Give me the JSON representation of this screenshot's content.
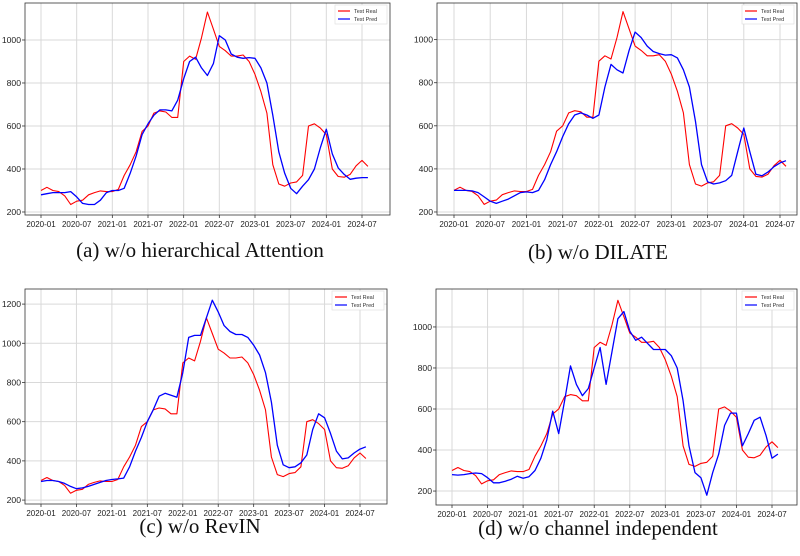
{
  "chart_data": [
    {
      "type": "line",
      "caption": "(a) w/o hierarchical Attention",
      "xticks": [
        "2020-01",
        "2020-07",
        "2021-01",
        "2021-07",
        "2022-01",
        "2022-07",
        "2023-01",
        "2023-07",
        "2024-01",
        "2024-07"
      ],
      "yticks": [
        200,
        400,
        600,
        800,
        1000
      ],
      "ylim": [
        186,
        1172
      ],
      "grid": true,
      "legend": "top-right",
      "x": [
        "2020-01",
        "2020-02",
        "2020-03",
        "2020-04",
        "2020-05",
        "2020-06",
        "2020-07",
        "2020-08",
        "2020-09",
        "2020-10",
        "2020-11",
        "2020-12",
        "2021-01",
        "2021-02",
        "2021-03",
        "2021-04",
        "2021-05",
        "2021-06",
        "2021-07",
        "2021-08",
        "2021-09",
        "2021-10",
        "2021-11",
        "2021-12",
        "2022-01",
        "2022-02",
        "2022-03",
        "2022-04",
        "2022-05",
        "2022-06",
        "2022-07",
        "2022-08",
        "2022-09",
        "2022-10",
        "2022-11",
        "2022-12",
        "2023-01",
        "2023-02",
        "2023-03",
        "2023-04",
        "2023-05",
        "2023-06",
        "2023-07",
        "2023-08",
        "2023-09",
        "2023-10",
        "2023-11",
        "2023-12",
        "2024-01",
        "2024-02",
        "2024-03",
        "2024-04",
        "2024-05",
        "2024-06",
        "2024-07",
        "2024-08"
      ],
      "series": [
        {
          "name": "Test Real",
          "color": "#ff0000",
          "values": [
            300,
            315,
            300,
            295,
            275,
            235,
            250,
            255,
            280,
            290,
            298,
            295,
            295,
            305,
            370,
            420,
            480,
            575,
            600,
            660,
            670,
            665,
            640,
            640,
            900,
            925,
            910,
            1010,
            1130,
            1050,
            970,
            950,
            925,
            925,
            930,
            900,
            840,
            760,
            660,
            420,
            330,
            320,
            335,
            340,
            370,
            600,
            610,
            590,
            560,
            400,
            365,
            362,
            375,
            415,
            440,
            412
          ]
        },
        {
          "name": "Test Pred",
          "color": "#0000ff",
          "values": [
            280,
            285,
            290,
            290,
            290,
            295,
            270,
            240,
            235,
            235,
            255,
            290,
            300,
            300,
            310,
            380,
            460,
            560,
            610,
            650,
            675,
            675,
            670,
            720,
            820,
            900,
            920,
            870,
            835,
            890,
            1020,
            1000,
            935,
            920,
            915,
            918,
            915,
            870,
            800,
            650,
            480,
            380,
            310,
            285,
            320,
            350,
            400,
            500,
            585,
            470,
            405,
            375,
            352,
            357,
            360,
            360
          ]
        }
      ]
    },
    {
      "type": "line",
      "caption": "(b) w/o DILATE",
      "xticks": [
        "2020-01",
        "2020-07",
        "2021-01",
        "2021-07",
        "2022-01",
        "2022-07",
        "2023-01",
        "2023-07",
        "2024-01",
        "2024-07"
      ],
      "yticks": [
        200,
        400,
        600,
        800,
        1000
      ],
      "ylim": [
        186,
        1170
      ],
      "grid": true,
      "legend": "top-right",
      "x": [
        "2020-01",
        "2020-02",
        "2020-03",
        "2020-04",
        "2020-05",
        "2020-06",
        "2020-07",
        "2020-08",
        "2020-09",
        "2020-10",
        "2020-11",
        "2020-12",
        "2021-01",
        "2021-02",
        "2021-03",
        "2021-04",
        "2021-05",
        "2021-06",
        "2021-07",
        "2021-08",
        "2021-09",
        "2021-10",
        "2021-11",
        "2021-12",
        "2022-01",
        "2022-02",
        "2022-03",
        "2022-04",
        "2022-05",
        "2022-06",
        "2022-07",
        "2022-08",
        "2022-09",
        "2022-10",
        "2022-11",
        "2022-12",
        "2023-01",
        "2023-02",
        "2023-03",
        "2023-04",
        "2023-05",
        "2023-06",
        "2023-07",
        "2023-08",
        "2023-09",
        "2023-10",
        "2023-11",
        "2023-12",
        "2024-01",
        "2024-02",
        "2024-03",
        "2024-04",
        "2024-05",
        "2024-06",
        "2024-07",
        "2024-08"
      ],
      "series": [
        {
          "name": "Test Real",
          "color": "#ff0000",
          "values": [
            300,
            315,
            300,
            295,
            275,
            235,
            250,
            255,
            280,
            290,
            298,
            295,
            295,
            305,
            370,
            420,
            480,
            575,
            600,
            660,
            670,
            665,
            640,
            640,
            900,
            925,
            910,
            1010,
            1130,
            1050,
            970,
            950,
            925,
            925,
            930,
            900,
            840,
            760,
            660,
            420,
            330,
            320,
            335,
            340,
            370,
            600,
            610,
            590,
            560,
            400,
            365,
            362,
            375,
            415,
            440,
            412
          ]
        },
        {
          "name": "Test Pred",
          "color": "#0000ff",
          "values": [
            300,
            300,
            300,
            298,
            290,
            270,
            250,
            240,
            250,
            260,
            275,
            290,
            293,
            290,
            300,
            350,
            420,
            480,
            550,
            610,
            650,
            660,
            650,
            635,
            650,
            780,
            885,
            860,
            845,
            950,
            1035,
            1010,
            970,
            945,
            935,
            928,
            930,
            915,
            860,
            780,
            620,
            420,
            340,
            330,
            335,
            345,
            370,
            480,
            590,
            480,
            375,
            368,
            385,
            410,
            428,
            438
          ]
        }
      ]
    },
    {
      "type": "line",
      "caption": "(c) w/o RevIN",
      "xticks": [
        "2020-01",
        "2020-07",
        "2021-01",
        "2021-07",
        "2022-01",
        "2022-07",
        "2023-01",
        "2023-07",
        "2024-01",
        "2024-07"
      ],
      "yticks": [
        200,
        400,
        600,
        800,
        1000,
        1200
      ],
      "ylim": [
        180,
        1277
      ],
      "grid": true,
      "legend": "top-right",
      "x": [
        "2020-01",
        "2020-02",
        "2020-03",
        "2020-04",
        "2020-05",
        "2020-06",
        "2020-07",
        "2020-08",
        "2020-09",
        "2020-10",
        "2020-11",
        "2020-12",
        "2021-01",
        "2021-02",
        "2021-03",
        "2021-04",
        "2021-05",
        "2021-06",
        "2021-07",
        "2021-08",
        "2021-09",
        "2021-10",
        "2021-11",
        "2021-12",
        "2022-01",
        "2022-02",
        "2022-03",
        "2022-04",
        "2022-05",
        "2022-06",
        "2022-07",
        "2022-08",
        "2022-09",
        "2022-10",
        "2022-11",
        "2022-12",
        "2023-01",
        "2023-02",
        "2023-03",
        "2023-04",
        "2023-05",
        "2023-06",
        "2023-07",
        "2023-08",
        "2023-09",
        "2023-10",
        "2023-11",
        "2023-12",
        "2024-01",
        "2024-02",
        "2024-03",
        "2024-04",
        "2024-05",
        "2024-06",
        "2024-07",
        "2024-08"
      ],
      "series": [
        {
          "name": "Test Real",
          "color": "#ff0000",
          "values": [
            300,
            315,
            300,
            295,
            275,
            235,
            250,
            255,
            280,
            290,
            298,
            295,
            295,
            305,
            370,
            420,
            480,
            575,
            600,
            660,
            670,
            665,
            640,
            640,
            900,
            925,
            910,
            1010,
            1130,
            1050,
            970,
            950,
            925,
            925,
            930,
            900,
            840,
            760,
            660,
            420,
            330,
            320,
            335,
            340,
            370,
            600,
            610,
            590,
            560,
            400,
            365,
            362,
            375,
            415,
            440,
            412
          ]
        },
        {
          "name": "Test Pred",
          "color": "#0000ff",
          "values": [
            295,
            300,
            300,
            295,
            285,
            270,
            258,
            262,
            270,
            280,
            290,
            300,
            305,
            308,
            312,
            370,
            450,
            520,
            600,
            660,
            730,
            745,
            735,
            725,
            850,
            1030,
            1040,
            1040,
            1130,
            1220,
            1160,
            1090,
            1060,
            1045,
            1045,
            1030,
            990,
            940,
            850,
            700,
            480,
            380,
            365,
            370,
            390,
            430,
            560,
            640,
            620,
            540,
            450,
            410,
            415,
            440,
            460,
            472
          ]
        }
      ]
    },
    {
      "type": "line",
      "caption": "(d) w/o channel independent",
      "xticks": [
        "2020-01",
        "2020-07",
        "2021-01",
        "2021-07",
        "2022-01",
        "2022-07",
        "2023-01",
        "2023-07",
        "2024-01",
        "2024-07"
      ],
      "yticks": [
        200,
        400,
        600,
        800,
        1000
      ],
      "ylim": [
        132,
        1185
      ],
      "grid": true,
      "legend": "top-right",
      "x": [
        "2020-01",
        "2020-02",
        "2020-03",
        "2020-04",
        "2020-05",
        "2020-06",
        "2020-07",
        "2020-08",
        "2020-09",
        "2020-10",
        "2020-11",
        "2020-12",
        "2021-01",
        "2021-02",
        "2021-03",
        "2021-04",
        "2021-05",
        "2021-06",
        "2021-07",
        "2021-08",
        "2021-09",
        "2021-10",
        "2021-11",
        "2021-12",
        "2022-01",
        "2022-02",
        "2022-03",
        "2022-04",
        "2022-05",
        "2022-06",
        "2022-07",
        "2022-08",
        "2022-09",
        "2022-10",
        "2022-11",
        "2022-12",
        "2023-01",
        "2023-02",
        "2023-03",
        "2023-04",
        "2023-05",
        "2023-06",
        "2023-07",
        "2023-08",
        "2023-09",
        "2023-10",
        "2023-11",
        "2023-12",
        "2024-01",
        "2024-02",
        "2024-03",
        "2024-04",
        "2024-05",
        "2024-06",
        "2024-07",
        "2024-08"
      ],
      "series": [
        {
          "name": "Test Real",
          "color": "#ff0000",
          "values": [
            300,
            315,
            300,
            295,
            275,
            235,
            250,
            255,
            280,
            290,
            298,
            295,
            295,
            305,
            370,
            420,
            480,
            575,
            600,
            660,
            670,
            665,
            640,
            640,
            900,
            925,
            910,
            1010,
            1130,
            1050,
            970,
            950,
            925,
            925,
            930,
            900,
            840,
            760,
            660,
            420,
            330,
            320,
            335,
            340,
            370,
            600,
            610,
            590,
            560,
            400,
            365,
            362,
            375,
            415,
            440,
            412
          ]
        },
        {
          "name": "Test Pred",
          "color": "#0000ff",
          "values": [
            280,
            278,
            280,
            285,
            288,
            285,
            265,
            240,
            240,
            248,
            258,
            272,
            262,
            270,
            300,
            360,
            450,
            590,
            480,
            640,
            810,
            720,
            665,
            700,
            800,
            900,
            720,
            880,
            1040,
            1075,
            980,
            935,
            950,
            920,
            890,
            890,
            890,
            860,
            800,
            640,
            420,
            290,
            265,
            180,
            290,
            380,
            520,
            580,
            580,
            420,
            480,
            545,
            560,
            470,
            360,
            380
          ]
        }
      ]
    }
  ]
}
